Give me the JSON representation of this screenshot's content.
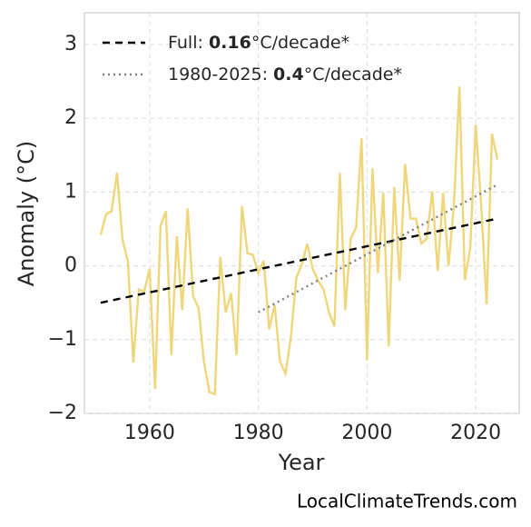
{
  "chart_data": {
    "type": "line",
    "x_label": "Year",
    "y_label": "Anomaly (°C)",
    "watermark": "LocalClimateTrends.com",
    "x": [
      1951,
      1952,
      1953,
      1954,
      1955,
      1956,
      1957,
      1958,
      1959,
      1960,
      1961,
      1962,
      1963,
      1964,
      1965,
      1966,
      1967,
      1968,
      1969,
      1970,
      1971,
      1972,
      1973,
      1974,
      1975,
      1976,
      1977,
      1978,
      1979,
      1980,
      1981,
      1982,
      1983,
      1984,
      1985,
      1986,
      1987,
      1988,
      1989,
      1990,
      1991,
      1992,
      1993,
      1994,
      1995,
      1996,
      1997,
      1998,
      1999,
      2000,
      2001,
      2002,
      2003,
      2004,
      2005,
      2006,
      2007,
      2008,
      2009,
      2010,
      2011,
      2012,
      2013,
      2014,
      2015,
      2016,
      2017,
      2018,
      2019,
      2020,
      2021,
      2022,
      2023,
      2024
    ],
    "series": [
      {
        "color": "#f0d67a",
        "values": [
          0.42,
          0.7,
          0.74,
          1.26,
          0.36,
          0.06,
          -1.31,
          -0.32,
          -0.35,
          -0.04,
          -1.67,
          0.54,
          0.74,
          -1.21,
          0.4,
          -0.6,
          0.78,
          -0.41,
          -0.57,
          -1.3,
          -1.71,
          -1.74,
          0.12,
          -0.63,
          -0.37,
          -1.21,
          0.81,
          0.17,
          0.15,
          -0.1,
          0.07,
          -0.86,
          -0.53,
          -1.3,
          -1.46,
          -0.96,
          -0.16,
          0.02,
          0.3,
          -0.04,
          -0.2,
          -0.32,
          -0.63,
          -0.82,
          1.26,
          -0.6,
          0.37,
          0.52,
          1.73,
          -1.28,
          1.32,
          -0.1,
          0.99,
          -1.09,
          1.07,
          -0.2,
          1.38,
          0.64,
          0.64,
          0.3,
          0.37,
          1.01,
          -0.07,
          0.99,
          0,
          0.83,
          2.43,
          -0.19,
          0.25,
          1.91,
          0.83,
          -0.52,
          1.79,
          1.44
        ]
      }
    ],
    "trends": [
      {
        "prefix": "Full:",
        "rate": "0.16",
        "unit": "°C/decade*",
        "color": "#000000",
        "dash": "8 6",
        "x": [
          1951,
          2024
        ],
        "values": [
          -0.5,
          0.64
        ]
      },
      {
        "prefix": "1980-2025:",
        "rate": "0.4",
        "unit": "°C/decade*",
        "color": "#808080",
        "dash": "2 4",
        "x": [
          1980,
          2024
        ],
        "values": [
          -0.63,
          1.1
        ]
      }
    ],
    "xlim": [
      1948,
      2028
    ],
    "ylim": [
      -2,
      3.43
    ],
    "xticks": [
      1960,
      1980,
      2000,
      2020
    ],
    "yticks": [
      {
        "value": -2,
        "label": "−2"
      },
      {
        "value": -1,
        "label": "−1"
      },
      0,
      1,
      2,
      3
    ],
    "grid": true
  }
}
